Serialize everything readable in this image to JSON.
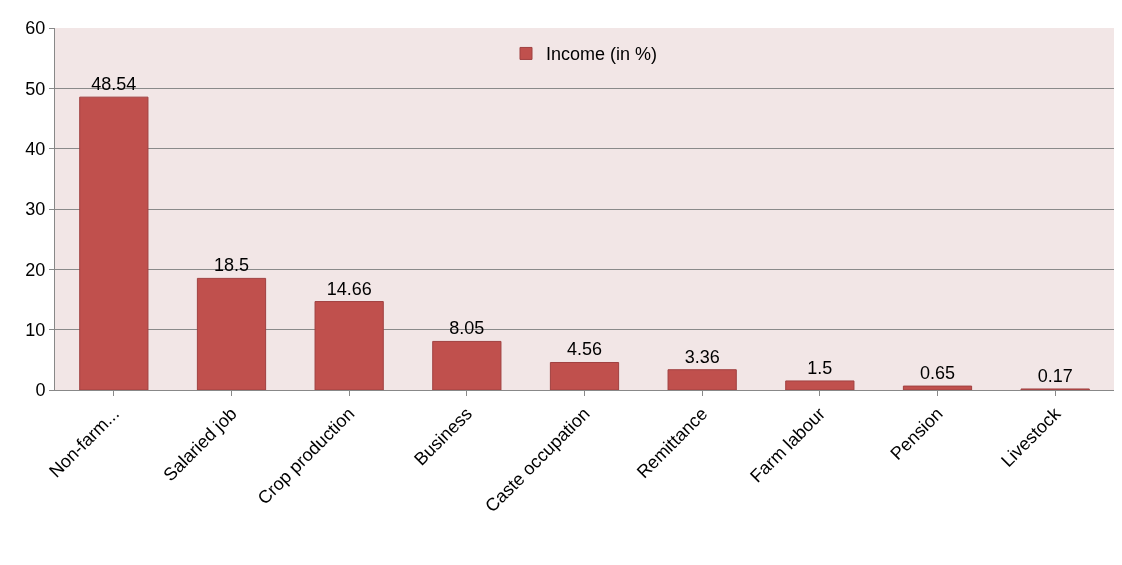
{
  "chart_data": {
    "type": "bar",
    "categories": [
      "Non-farm...",
      "Salaried job",
      "Crop production",
      "Business",
      "Caste occupation",
      "Remittance",
      "Farm labour",
      "Pension",
      "Livestock"
    ],
    "series": [
      {
        "name": "Income (in %)",
        "color": "#c0504d",
        "values": [
          48.54,
          18.5,
          14.66,
          8.05,
          4.56,
          3.36,
          1.5,
          0.65,
          0.17
        ]
      }
    ],
    "data_labels": true,
    "ylim": [
      0,
      60
    ],
    "yticks": [
      0,
      10,
      20,
      30,
      40,
      50,
      60
    ],
    "grid": "y",
    "legend": "top"
  }
}
